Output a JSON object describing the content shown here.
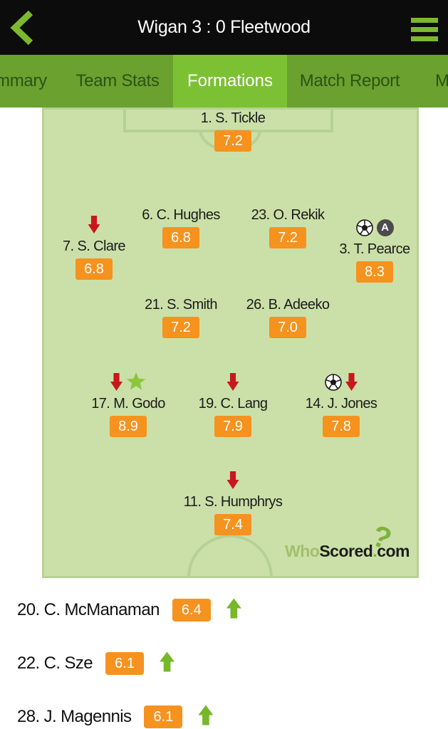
{
  "header": {
    "title": "Wigan 3 : 0 Fleetwood",
    "back_icon": "chevron-left",
    "menu_icon": "hamburger-menu"
  },
  "tabs": {
    "items": [
      {
        "label": "mmary",
        "selected": false
      },
      {
        "label": "Team Stats",
        "selected": false
      },
      {
        "label": "Formations",
        "selected": true
      },
      {
        "label": "Match Report",
        "selected": false
      },
      {
        "label": "M",
        "selected": false
      }
    ]
  },
  "pitch": {
    "players": [
      {
        "name": "1. S. Tickle",
        "rating": "7.2",
        "icons": []
      },
      {
        "name": "7. S. Clare",
        "rating": "6.8",
        "icons": [
          "down-arrow"
        ]
      },
      {
        "name": "6. C. Hughes",
        "rating": "6.8",
        "icons": []
      },
      {
        "name": "23. O. Rekik",
        "rating": "7.2",
        "icons": []
      },
      {
        "name": "3. T. Pearce",
        "rating": "8.3",
        "icons": [
          "ball",
          "assist"
        ]
      },
      {
        "name": "21. S. Smith",
        "rating": "7.2",
        "icons": []
      },
      {
        "name": "26. B. Adeeko",
        "rating": "7.0",
        "icons": []
      },
      {
        "name": "17. M. Godo",
        "rating": "8.9",
        "icons": [
          "down-arrow",
          "star"
        ]
      },
      {
        "name": "19. C. Lang",
        "rating": "7.9",
        "icons": [
          "down-arrow"
        ]
      },
      {
        "name": "14. J. Jones",
        "rating": "7.8",
        "icons": [
          "ball",
          "down-arrow"
        ]
      },
      {
        "name": "11. S. Humphrys",
        "rating": "7.4",
        "icons": [
          "down-arrow"
        ]
      }
    ],
    "watermark": {
      "who": "Who",
      "scored": "Scored",
      "dot": ".",
      "com": "com",
      "qmark": "?"
    }
  },
  "substitutes": [
    {
      "name": "20. C. McManaman",
      "rating": "6.4",
      "icons": [
        "up-arrow"
      ]
    },
    {
      "name": "22. C. Sze",
      "rating": "6.1",
      "icons": [
        "up-arrow"
      ]
    },
    {
      "name": "28. J. Magennis",
      "rating": "6.1",
      "icons": [
        "up-arrow"
      ]
    }
  ],
  "colors": {
    "accent_green": "#7cb82f",
    "tabbar_bg": "#6ba12e",
    "tab_selected_bg": "#7cc133",
    "pitch_bg": "#cbe0a8",
    "pitch_line": "#b6d193",
    "badge_orange": "#f6921e",
    "rating_drop_red": "#c9181d",
    "man_of_match_green": "#8cc63f",
    "sub_on_green": "#76b82a",
    "header_bg": "#0c0c0c"
  },
  "icon_legend": {
    "down-arrow": "rating-drop-icon",
    "up-arrow": "sub-on-icon",
    "star": "man-of-the-match-icon",
    "ball": "goal-icon",
    "assist": "assist-icon"
  }
}
